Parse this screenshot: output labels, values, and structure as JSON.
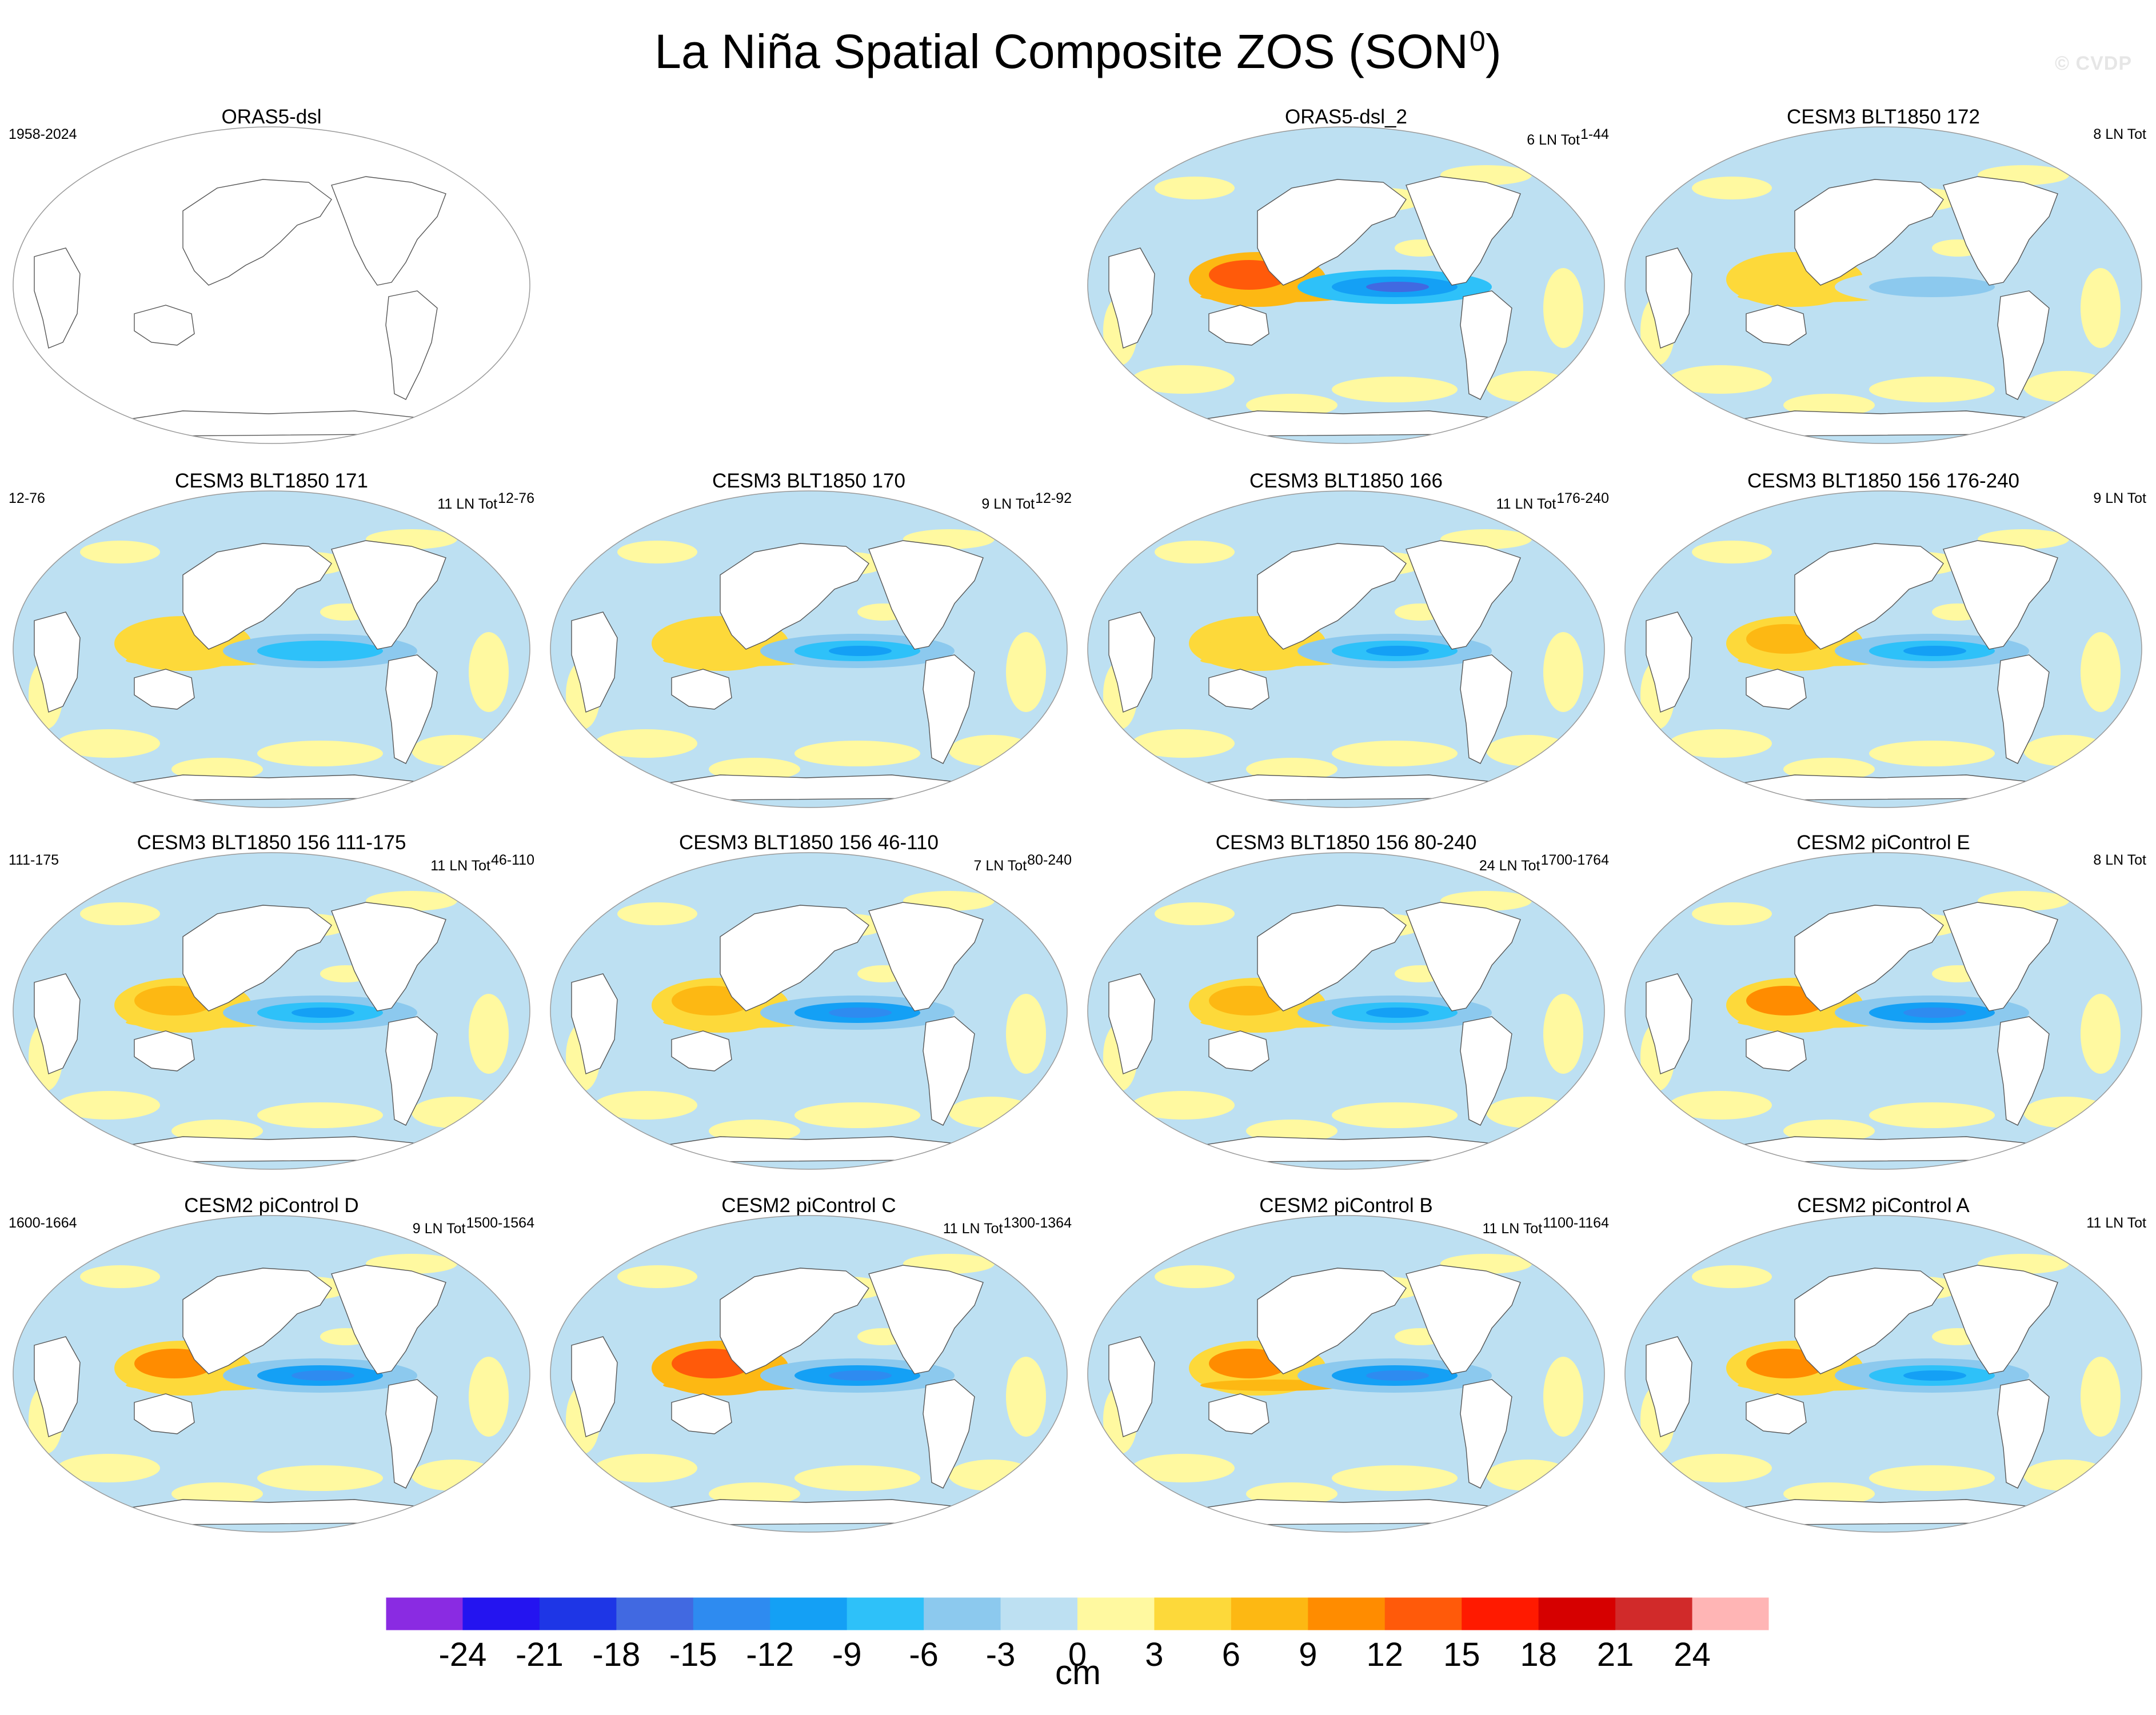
{
  "title": {
    "main": "La Niña Spatial Composite ZOS (SON",
    "sup": "0",
    "end": ")"
  },
  "watermark": "© CVDP",
  "panels": [
    {
      "title": "ORAS5-dsl",
      "left": "1958-2024",
      "count": "",
      "empty": true,
      "pattern": {
        "tropical_anomaly": 0,
        "warm_pool": 0
      }
    },
    {
      "title": "ORAS5-dsl_2",
      "left": "",
      "count": "6 LN Tot",
      "sup": "1-44",
      "empty": false,
      "pattern": {
        "tropical_anomaly": -17,
        "warm_pool": 12
      }
    },
    {
      "title": "CESM3 BLT1850 172",
      "left": "",
      "count": "8 LN Tot",
      "sup": "",
      "empty": false,
      "pattern": {
        "tropical_anomaly": -6,
        "warm_pool": 3
      }
    },
    {
      "title": "CESM3 BLT1850 171",
      "left": "12-76",
      "count": "11 LN Tot",
      "sup": "12-76",
      "empty": false,
      "pattern": {
        "tropical_anomaly": -9,
        "warm_pool": 3
      }
    },
    {
      "title": "CESM3 BLT1850 170",
      "left": "",
      "count": "9 LN Tot",
      "sup": "12-92",
      "empty": false,
      "pattern": {
        "tropical_anomaly": -11,
        "warm_pool": 4
      }
    },
    {
      "title": "CESM3 BLT1850 166",
      "left": "",
      "count": "11 LN Tot",
      "sup": "176-240",
      "empty": false,
      "pattern": {
        "tropical_anomaly": -10,
        "warm_pool": 5
      }
    },
    {
      "title": "CESM3 BLT1850 156 176-240",
      "left": "",
      "count": "9 LN Tot",
      "sup": "",
      "empty": false,
      "pattern": {
        "tropical_anomaly": -11,
        "warm_pool": 6
      }
    },
    {
      "title": "CESM3 BLT1850 156 111-175",
      "left": "111-175",
      "count": "11 LN Tot",
      "sup": "46-110",
      "empty": false,
      "pattern": {
        "tropical_anomaly": -11,
        "warm_pool": 7
      }
    },
    {
      "title": "CESM3 BLT1850 156 46-110",
      "left": "",
      "count": "7 LN Tot",
      "sup": "80-240",
      "empty": false,
      "pattern": {
        "tropical_anomaly": -15,
        "warm_pool": 8
      }
    },
    {
      "title": "CESM3 BLT1850 156 80-240",
      "left": "",
      "count": "24 LN Tot",
      "sup": "1700-1764",
      "empty": false,
      "pattern": {
        "tropical_anomaly": -10,
        "warm_pool": 6
      }
    },
    {
      "title": "CESM2 piControl E",
      "left": "",
      "count": "8 LN Tot",
      "sup": "",
      "empty": false,
      "pattern": {
        "tropical_anomaly": -14,
        "warm_pool": 9
      }
    },
    {
      "title": "CESM2 piControl D",
      "left": "1600-1664",
      "count": "9 LN Tot",
      "sup": "1500-1564",
      "empty": false,
      "pattern": {
        "tropical_anomaly": -14,
        "warm_pool": 9
      }
    },
    {
      "title": "CESM2 piControl C",
      "left": "",
      "count": "11 LN Tot",
      "sup": "1300-1364",
      "empty": false,
      "pattern": {
        "tropical_anomaly": -15,
        "warm_pool": 12
      }
    },
    {
      "title": "CESM2 piControl B",
      "left": "",
      "count": "11 LN Tot",
      "sup": "1100-1164",
      "empty": false,
      "pattern": {
        "tropical_anomaly": -14,
        "warm_pool": 11
      }
    },
    {
      "title": "CESM2 piControl A",
      "left": "",
      "count": "11 LN Tot",
      "sup": "",
      "empty": false,
      "pattern": {
        "tropical_anomaly": -12,
        "warm_pool": 9
      }
    }
  ],
  "chart_data": {
    "type": "heatmap",
    "title": "La Niña Spatial Composite ZOS (SON0)",
    "projection": "global map panels (Pacific-centered)",
    "colorbar": {
      "units": "cm",
      "tick_labels": [
        "-24",
        "-21",
        "-18",
        "-15",
        "-12",
        "-9",
        "-6",
        "-3",
        "0",
        "3",
        "6",
        "9",
        "12",
        "15",
        "18",
        "21",
        "24"
      ],
      "levels": [
        -24,
        -21,
        -18,
        -15,
        -12,
        -9,
        -6,
        -3,
        0,
        3,
        6,
        9,
        12,
        15,
        18,
        21,
        24
      ],
      "colors": [
        "#8a2be2",
        "#2414f0",
        "#1e36e6",
        "#4169e1",
        "#2e8bf0",
        "#14a0f5",
        "#2ec1f9",
        "#8cc9ee",
        "#bde0f2",
        "#fff9a0",
        "#fdd93a",
        "#fdb813",
        "#ff8c00",
        "#ff5a0a",
        "#ff1a00",
        "#d60000",
        "#d12a2a",
        "#ffb5b5"
      ]
    },
    "panel_order": "row-major, 4 columns; first row has one blank slot after the first panel"
  }
}
